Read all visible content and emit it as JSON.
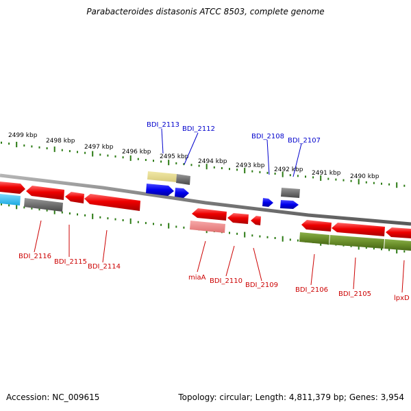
{
  "title": "Parabacteroides distasonis ATCC 8503, complete genome",
  "footer": {
    "accession": "Accession: NC_009615",
    "stats": "Topology: circular; Length: 4,811,379 bp; Genes: 3,954"
  },
  "colors": {
    "forward_label": "#0000cc",
    "reverse_label": "#cc0000",
    "tick": "#2a7a12",
    "backbone": "#888888"
  },
  "ruler": {
    "labels": [
      "2499 kbp",
      "2498 kbp",
      "2497 kbp",
      "2496 kbp",
      "2495 kbp",
      "2494 kbp",
      "2493 kbp",
      "2492 kbp",
      "2491 kbp",
      "2490 kbp"
    ]
  },
  "genes": [
    {
      "name": "BDI_2113",
      "strand": "forward",
      "color": "#e8dc8c"
    },
    {
      "name": "BDI_2112",
      "strand": "forward",
      "color": "#0000ee"
    },
    {
      "name": "BDI_2108",
      "strand": "forward",
      "color": "#0000ee"
    },
    {
      "name": "BDI_2107",
      "strand": "forward",
      "color": "#0000ee"
    },
    {
      "name": "BDI_2116",
      "strand": "reverse",
      "color": "#ee0000"
    },
    {
      "name": "BDI_2115",
      "strand": "reverse",
      "color": "#ee0000"
    },
    {
      "name": "BDI_2114",
      "strand": "reverse",
      "color": "#ee0000"
    },
    {
      "name": "miaA",
      "strand": "reverse",
      "color": "#ee0000"
    },
    {
      "name": "BDI_2110",
      "strand": "reverse",
      "color": "#ee0000"
    },
    {
      "name": "BDI_2109",
      "strand": "reverse",
      "color": "#ee0000"
    },
    {
      "name": "BDI_2106",
      "strand": "reverse",
      "color": "#ee0000"
    },
    {
      "name": "BDI_2105",
      "strand": "reverse",
      "color": "#ee0000"
    },
    {
      "name": "lpxD",
      "strand": "reverse",
      "color": "#ee0000"
    }
  ]
}
